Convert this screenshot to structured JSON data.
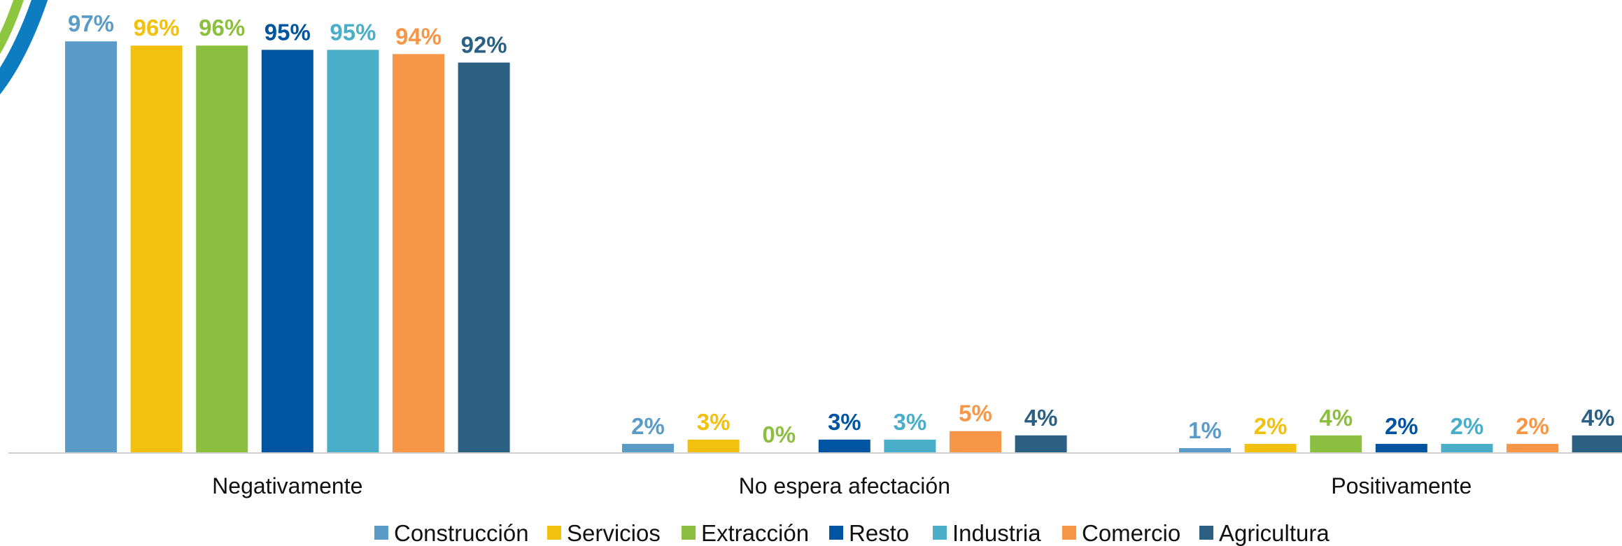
{
  "chart_data": {
    "type": "bar",
    "categories": [
      "Negativamente",
      "No espera afectación",
      "Positivamente"
    ],
    "series": [
      {
        "name": "Construcción",
        "color": "#5b9bc8",
        "values": [
          97,
          2,
          1
        ],
        "value_labels": [
          "97%",
          "2%",
          "1%"
        ]
      },
      {
        "name": "Servicios",
        "color": "#f2c00f",
        "values": [
          96,
          3,
          2
        ],
        "value_labels": [
          "96%",
          "3%",
          "2%"
        ]
      },
      {
        "name": "Extracción",
        "color": "#8cbf3f",
        "values": [
          96,
          0,
          4
        ],
        "value_labels": [
          "96%",
          "0%",
          "4%"
        ]
      },
      {
        "name": "Resto",
        "color": "#0054a0",
        "values": [
          95,
          3,
          2
        ],
        "value_labels": [
          "95%",
          "3%",
          "2%"
        ]
      },
      {
        "name": "Industria",
        "color": "#4aaec8",
        "values": [
          95,
          3,
          2
        ],
        "value_labels": [
          "95%",
          "3%",
          "2%"
        ]
      },
      {
        "name": "Comercio",
        "color": "#f79646",
        "values": [
          94,
          5,
          2
        ],
        "value_labels": [
          "94%",
          "5%",
          "2%"
        ]
      },
      {
        "name": "Agricultura",
        "color": "#2c6083",
        "values": [
          92,
          4,
          4
        ],
        "value_labels": [
          "92%",
          "4%",
          "4%"
        ]
      }
    ],
    "legend": "bottom"
  }
}
